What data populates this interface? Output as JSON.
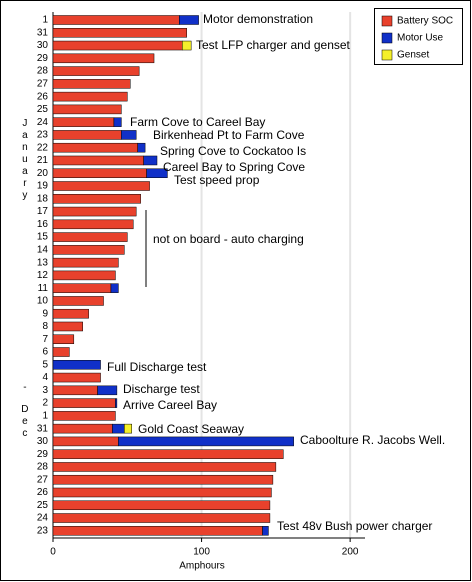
{
  "chart_data": {
    "type": "stacked-barh",
    "x_label": "Amphours",
    "categories": [
      "1",
      "31",
      "30",
      "29",
      "28",
      "27",
      "26",
      "25",
      "24",
      "23",
      "22",
      "21",
      "20",
      "19",
      "18",
      "17",
      "16",
      "15",
      "14",
      "13",
      "12",
      "11",
      "10",
      "9",
      "8",
      "7",
      "6",
      "5",
      "4",
      "3",
      "2",
      "1",
      "31",
      "30",
      "29",
      "28",
      "27",
      "26",
      "25",
      "24",
      "23"
    ],
    "series": [
      {
        "name": "Battery SOC",
        "color": "#e8412c",
        "values": [
          85,
          90,
          87,
          68,
          58,
          52,
          50,
          46,
          41,
          46,
          57,
          61,
          63,
          65,
          59,
          56,
          54,
          50,
          48,
          44,
          42,
          39,
          34,
          24,
          20,
          14,
          11,
          null,
          32,
          30,
          42,
          42,
          40,
          44,
          155,
          150,
          148,
          147,
          146,
          146,
          141
        ]
      },
      {
        "name": "Motor Use",
        "color": "#1030c8",
        "values": [
          13,
          null,
          null,
          null,
          null,
          null,
          null,
          null,
          5,
          10,
          5,
          9,
          14,
          null,
          null,
          null,
          null,
          null,
          null,
          null,
          null,
          5,
          null,
          null,
          null,
          null,
          null,
          32,
          null,
          13,
          1,
          null,
          8,
          118,
          null,
          null,
          null,
          null,
          null,
          null,
          4
        ]
      },
      {
        "name": "Genset",
        "color": "#f5f02a",
        "values": [
          null,
          null,
          6,
          null,
          null,
          null,
          null,
          null,
          null,
          null,
          null,
          null,
          null,
          null,
          null,
          null,
          null,
          null,
          null,
          null,
          null,
          null,
          null,
          null,
          null,
          null,
          null,
          null,
          null,
          null,
          null,
          null,
          5,
          null,
          null,
          null,
          null,
          null,
          null,
          null,
          null
        ]
      }
    ],
    "xlim": [
      0,
      210
    ],
    "xticks": [
      0,
      100,
      200
    ],
    "grid": true,
    "legend": "top-right",
    "annotations": [
      "Motor demonstration",
      "Test LFP charger and genset",
      "Farm Cove to Careel Bay",
      "Birkenhead Pt to Farm Cove",
      "Spring Cove to Cockatoo Is",
      "Careel Bay to Spring Cove",
      "Test speed prop",
      "not on board - auto charging",
      "Full Discharge test",
      "Discharge test",
      "Arrive Careel Bay",
      "Gold Coast Seaway",
      "Caboolture R. Jacobs Well.",
      "Test 48v Bush power charger"
    ],
    "month_labels": [
      "January",
      "-",
      "Dec"
    ]
  }
}
